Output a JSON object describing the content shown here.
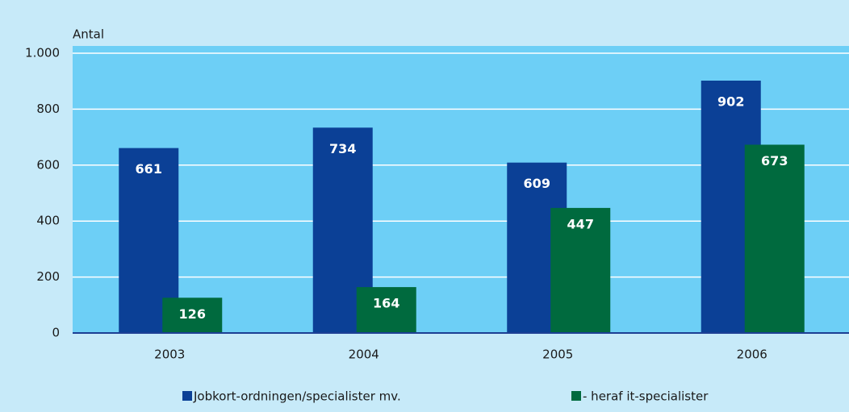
{
  "chart_data": {
    "type": "bar",
    "y_label": "Antal",
    "categories": [
      "2003",
      "2004",
      "2005",
      "2006"
    ],
    "series": [
      {
        "name": "Jobkort-ordningen/specialister mv.",
        "color": "#0b4096",
        "values": [
          661,
          734,
          609,
          902
        ]
      },
      {
        "name": "- heraf it-specialister",
        "color": "#006a3e",
        "values": [
          126,
          164,
          447,
          673
        ]
      }
    ],
    "ylim": [
      0,
      1000
    ],
    "yticks": [
      0,
      200,
      400,
      600,
      800,
      {
        "value": 1000,
        "label": "1.000"
      }
    ],
    "grid": true
  }
}
